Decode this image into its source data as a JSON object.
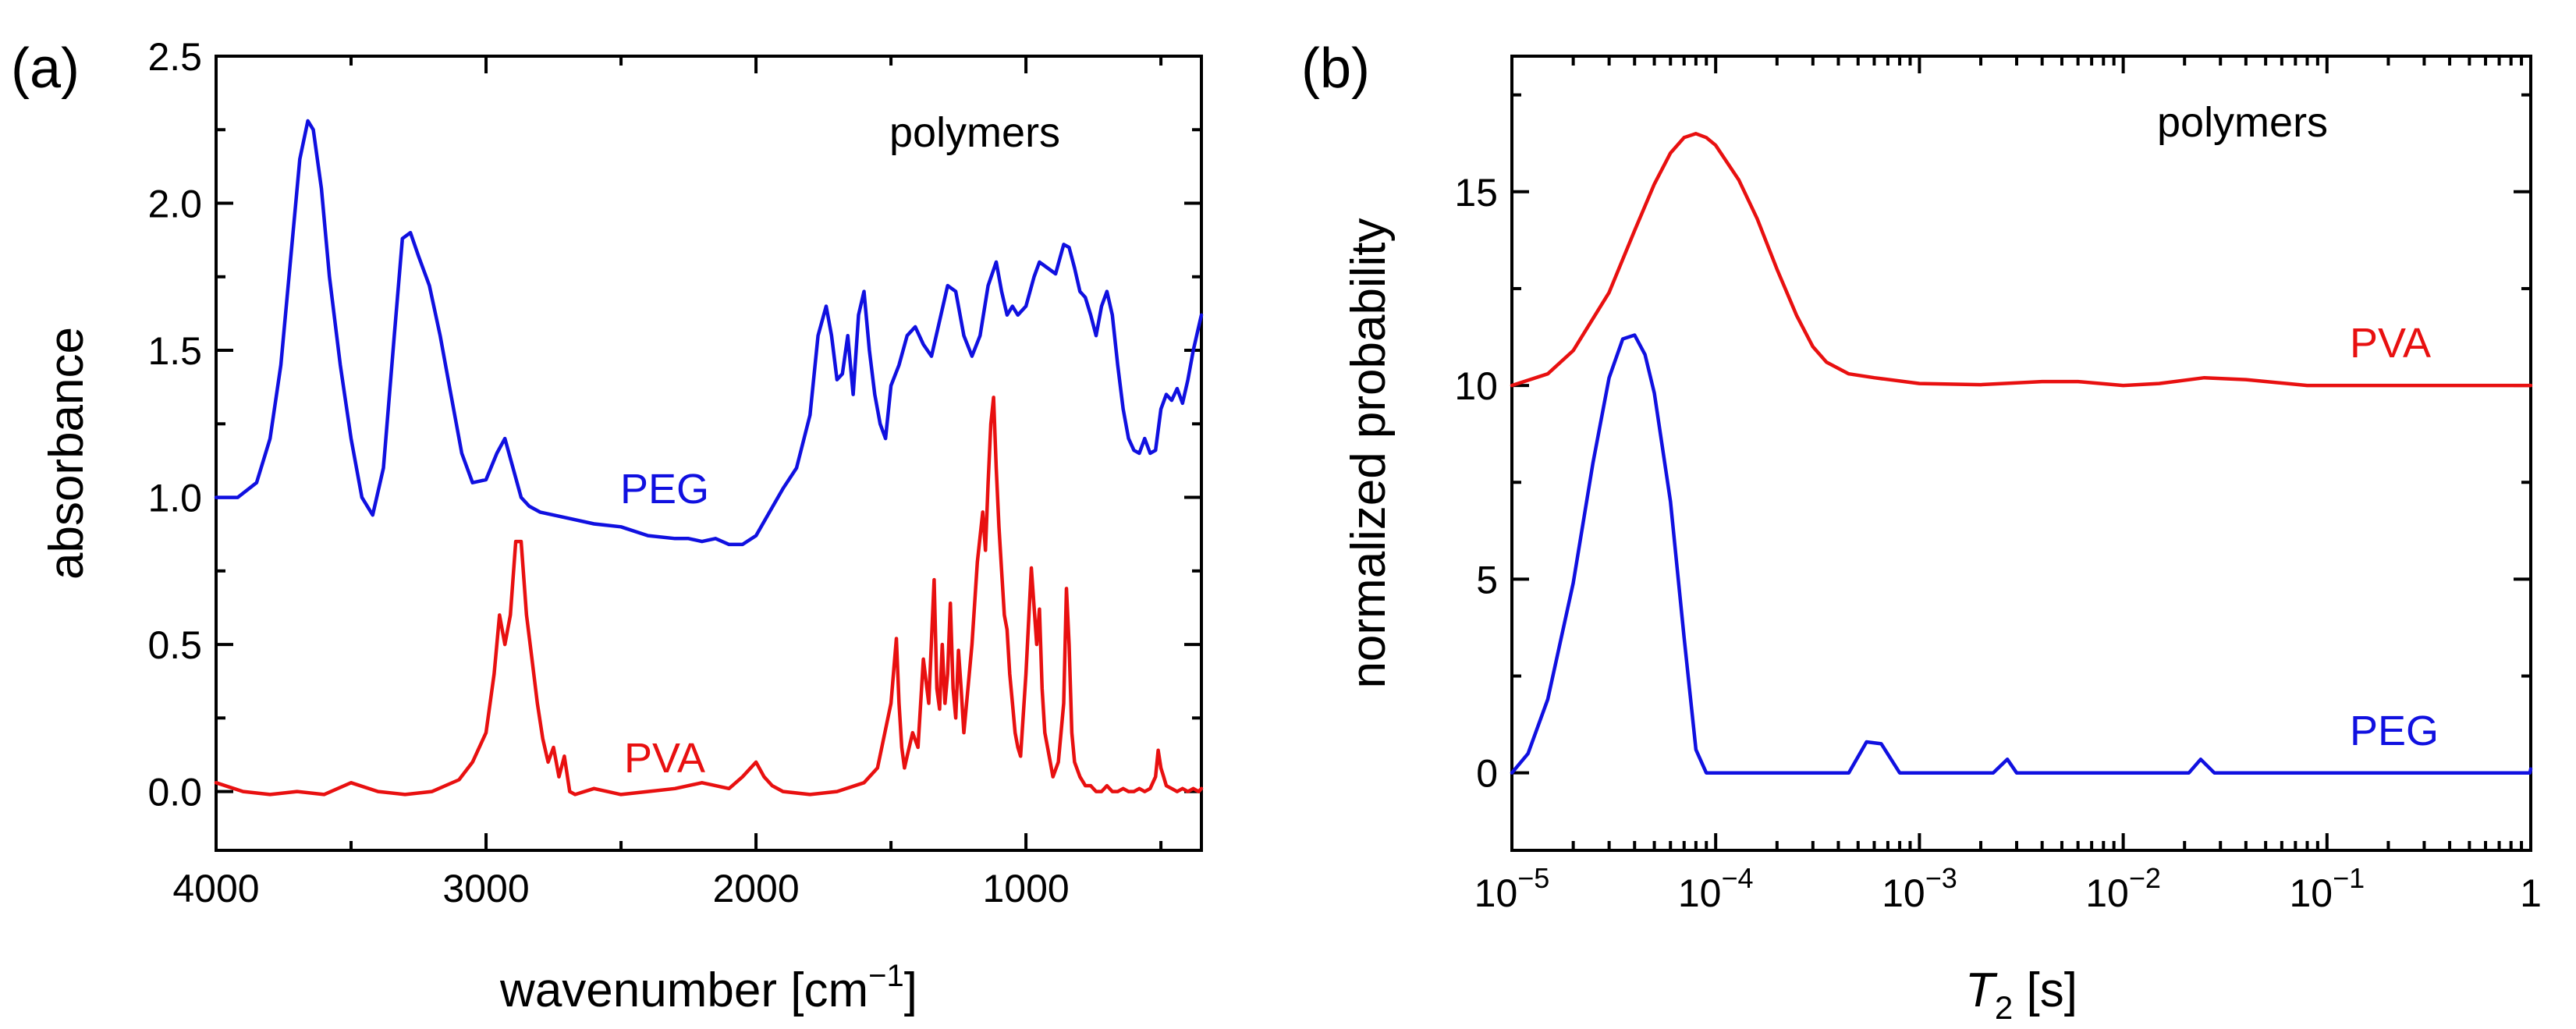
{
  "chart_data": [
    {
      "panel": "(a)",
      "type": "line",
      "annotation": "polymers",
      "xlabel": "wavenumber [cm",
      "xlabel_sup": "−1",
      "xlabel_end": "]",
      "ylabel": "absorbance",
      "xlim": [
        4000,
        350
      ],
      "ylim": [
        -0.2,
        2.5
      ],
      "xticks": [
        4000,
        3000,
        2000,
        1000
      ],
      "xtick_labels": [
        "4000",
        "3000",
        "2000",
        "1000"
      ],
      "yticks": [
        0.0,
        0.5,
        1.0,
        1.5,
        2.0,
        2.5
      ],
      "ytick_labels": [
        "0.0",
        "0.5",
        "1.0",
        "1.5",
        "2.0",
        "2.5"
      ],
      "series": [
        {
          "name": "PEG",
          "color": "#1010e0",
          "x": [
            4000,
            3920,
            3850,
            3800,
            3760,
            3720,
            3690,
            3660,
            3640,
            3610,
            3580,
            3540,
            3500,
            3460,
            3420,
            3380,
            3340,
            3310,
            3280,
            3250,
            3210,
            3170,
            3130,
            3090,
            3050,
            3000,
            2960,
            2930,
            2900,
            2870,
            2840,
            2800,
            2700,
            2600,
            2500,
            2400,
            2300,
            2250,
            2200,
            2150,
            2100,
            2050,
            2000,
            1950,
            1900,
            1850,
            1800,
            1770,
            1740,
            1720,
            1700,
            1680,
            1660,
            1640,
            1620,
            1600,
            1580,
            1560,
            1540,
            1520,
            1500,
            1470,
            1440,
            1410,
            1380,
            1350,
            1320,
            1290,
            1260,
            1230,
            1200,
            1170,
            1140,
            1110,
            1090,
            1070,
            1050,
            1030,
            1000,
            970,
            950,
            920,
            890,
            860,
            840,
            820,
            800,
            780,
            760,
            740,
            720,
            700,
            680,
            660,
            640,
            620,
            600,
            580,
            560,
            540,
            520,
            500,
            480,
            460,
            440,
            420,
            400,
            380,
            360,
            350
          ],
          "y": [
            1.0,
            1.0,
            1.05,
            1.2,
            1.45,
            1.85,
            2.15,
            2.28,
            2.25,
            2.05,
            1.75,
            1.45,
            1.2,
            1.0,
            0.94,
            1.1,
            1.55,
            1.88,
            1.9,
            1.82,
            1.72,
            1.55,
            1.35,
            1.15,
            1.05,
            1.06,
            1.15,
            1.2,
            1.1,
            1.0,
            0.97,
            0.95,
            0.93,
            0.91,
            0.9,
            0.87,
            0.86,
            0.86,
            0.85,
            0.86,
            0.84,
            0.84,
            0.87,
            0.95,
            1.03,
            1.1,
            1.28,
            1.55,
            1.65,
            1.55,
            1.4,
            1.42,
            1.55,
            1.35,
            1.62,
            1.7,
            1.5,
            1.35,
            1.25,
            1.2,
            1.38,
            1.45,
            1.55,
            1.58,
            1.52,
            1.48,
            1.6,
            1.72,
            1.7,
            1.55,
            1.48,
            1.55,
            1.72,
            1.8,
            1.7,
            1.62,
            1.65,
            1.62,
            1.65,
            1.75,
            1.8,
            1.78,
            1.76,
            1.86,
            1.85,
            1.78,
            1.7,
            1.68,
            1.62,
            1.55,
            1.65,
            1.7,
            1.62,
            1.45,
            1.3,
            1.2,
            1.16,
            1.15,
            1.2,
            1.15,
            1.16,
            1.3,
            1.35,
            1.33,
            1.37,
            1.32,
            1.4,
            1.5,
            1.58,
            1.62
          ]
        },
        {
          "name": "PVA",
          "color": "#e81010",
          "x": [
            4000,
            3900,
            3800,
            3700,
            3600,
            3500,
            3400,
            3300,
            3200,
            3100,
            3050,
            3000,
            2970,
            2950,
            2930,
            2910,
            2890,
            2870,
            2850,
            2830,
            2810,
            2790,
            2770,
            2750,
            2730,
            2710,
            2690,
            2670,
            2600,
            2500,
            2400,
            2300,
            2200,
            2100,
            2050,
            2000,
            1970,
            1940,
            1900,
            1800,
            1700,
            1600,
            1550,
            1500,
            1480,
            1470,
            1460,
            1450,
            1440,
            1420,
            1400,
            1380,
            1360,
            1340,
            1330,
            1320,
            1310,
            1300,
            1290,
            1280,
            1270,
            1260,
            1250,
            1240,
            1230,
            1220,
            1200,
            1180,
            1160,
            1150,
            1140,
            1130,
            1120,
            1110,
            1100,
            1090,
            1080,
            1070,
            1060,
            1050,
            1040,
            1030,
            1020,
            1000,
            980,
            960,
            950,
            940,
            930,
            920,
            900,
            880,
            860,
            850,
            840,
            830,
            820,
            800,
            780,
            760,
            740,
            720,
            700,
            680,
            660,
            640,
            620,
            600,
            580,
            560,
            540,
            520,
            510,
            500,
            490,
            480,
            460,
            440,
            420,
            400,
            380,
            360,
            350
          ],
          "y": [
            0.03,
            0.0,
            -0.01,
            0.0,
            -0.01,
            0.03,
            0.0,
            -0.01,
            0.0,
            0.04,
            0.1,
            0.2,
            0.4,
            0.6,
            0.5,
            0.6,
            0.85,
            0.85,
            0.6,
            0.45,
            0.3,
            0.18,
            0.1,
            0.15,
            0.05,
            0.12,
            0.0,
            -0.01,
            0.01,
            -0.01,
            0.0,
            0.01,
            0.03,
            0.01,
            0.05,
            0.1,
            0.05,
            0.02,
            0.0,
            -0.01,
            0.0,
            0.03,
            0.08,
            0.3,
            0.52,
            0.3,
            0.15,
            0.08,
            0.12,
            0.2,
            0.15,
            0.45,
            0.3,
            0.72,
            0.35,
            0.28,
            0.5,
            0.3,
            0.4,
            0.64,
            0.35,
            0.25,
            0.48,
            0.35,
            0.2,
            0.3,
            0.5,
            0.78,
            0.95,
            0.82,
            1.05,
            1.25,
            1.34,
            1.1,
            0.9,
            0.75,
            0.6,
            0.55,
            0.4,
            0.3,
            0.2,
            0.15,
            0.12,
            0.4,
            0.76,
            0.5,
            0.62,
            0.35,
            0.2,
            0.15,
            0.05,
            0.1,
            0.3,
            0.69,
            0.5,
            0.2,
            0.1,
            0.05,
            0.02,
            0.02,
            0.0,
            0.0,
            0.02,
            0.0,
            0.0,
            0.01,
            0.0,
            0.0,
            0.01,
            0.0,
            0.01,
            0.05,
            0.14,
            0.08,
            0.05,
            0.02,
            0.01,
            0.0,
            0.01,
            0.0,
            0.01,
            0.0,
            0.01
          ]
        }
      ]
    },
    {
      "panel": "(b)",
      "type": "line",
      "annotation": "polymers",
      "xlabel_italic": "T",
      "xlabel_sub": "2",
      "xlabel_end": " [s]",
      "ylabel": "normalized probability",
      "xscale": "log",
      "xlim": [
        1e-05,
        1
      ],
      "ylim": [
        -2,
        18.5
      ],
      "xtick_exponents": [
        "−5",
        "−4",
        "−3",
        "−2",
        "−1",
        ""
      ],
      "xtick_base": "10",
      "xtick_last_label": "1",
      "yticks": [
        0,
        5,
        10,
        15
      ],
      "ytick_labels": [
        "0",
        "5",
        "10",
        "15"
      ],
      "series": [
        {
          "name": "PVA",
          "color": "#e81010",
          "x": [
            1e-05,
            1.5e-05,
            2e-05,
            3e-05,
            4e-05,
            5e-05,
            6e-05,
            7e-05,
            8e-05,
            9e-05,
            0.0001,
            0.00013,
            0.00016,
            0.0002,
            0.00025,
            0.0003,
            0.00035,
            0.00045,
            0.0006,
            0.001,
            0.002,
            0.004,
            0.006,
            0.01,
            0.015,
            0.025,
            0.04,
            0.08,
            0.2,
            0.5,
            1
          ],
          "y": [
            10.0,
            10.3,
            10.9,
            12.4,
            14.0,
            15.2,
            16.0,
            16.4,
            16.5,
            16.4,
            16.2,
            15.3,
            14.3,
            13.0,
            11.8,
            11.0,
            10.6,
            10.3,
            10.2,
            10.05,
            10.02,
            10.1,
            10.1,
            10.0,
            10.05,
            10.2,
            10.15,
            10.0,
            10.0,
            10.0,
            10.0
          ]
        },
        {
          "name": "PEG",
          "color": "#1010e0",
          "x": [
            1e-05,
            1.2e-05,
            1.5e-05,
            2e-05,
            2.5e-05,
            3e-05,
            3.5e-05,
            4e-05,
            4.5e-05,
            5e-05,
            6e-05,
            7e-05,
            8e-05,
            9e-05,
            0.0001,
            0.00045,
            0.00055,
            0.00065,
            0.0008,
            0.0023,
            0.0027,
            0.003,
            0.021,
            0.024,
            0.028,
            0.99,
            1
          ],
          "y": [
            0.0,
            0.5,
            1.9,
            4.9,
            8.0,
            10.2,
            11.2,
            11.3,
            10.8,
            9.8,
            7.0,
            3.5,
            0.6,
            0.0,
            0.0,
            0.0,
            0.8,
            0.75,
            0.0,
            0.0,
            0.35,
            0.0,
            0.0,
            0.35,
            0.0,
            0.0,
            0.1
          ]
        }
      ]
    }
  ]
}
